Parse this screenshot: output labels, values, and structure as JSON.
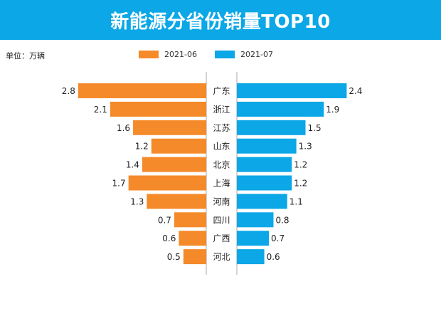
{
  "colors": {
    "title_bg": "#0ba7e6",
    "series_left": "#f58a2a",
    "series_right": "#0ba7e6",
    "divider": "#aaaaaa",
    "text": "#222222"
  },
  "header": {
    "unit": "单位：万辆"
  },
  "chart_data": {
    "type": "bar",
    "orientation": "horizontal-butterfly",
    "title": "新能源分省份销量TOP10",
    "categories": [
      "广东",
      "浙江",
      "江苏",
      "山东",
      "北京",
      "上海",
      "河南",
      "四川",
      "广西",
      "河北"
    ],
    "series": [
      {
        "name": "2021-06",
        "side": "left",
        "values": [
          2.8,
          2.1,
          1.6,
          1.2,
          1.4,
          1.7,
          1.3,
          0.7,
          0.6,
          0.5
        ]
      },
      {
        "name": "2021-07",
        "side": "right",
        "values": [
          2.4,
          1.9,
          1.5,
          1.3,
          1.2,
          1.2,
          1.1,
          0.8,
          0.7,
          0.6
        ]
      }
    ],
    "xlim": [
      0,
      3.0
    ],
    "legend_position": "top-center",
    "grid": false
  }
}
